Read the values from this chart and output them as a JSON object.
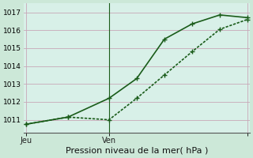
{
  "xlabel": "Pression niveau de la mer( hPa )",
  "bg_color": "#cce8d8",
  "plot_bg_color": "#d8f0e8",
  "grid_color": "#c8a8b8",
  "line_color": "#1a5c1a",
  "ylim": [
    1010.3,
    1017.5
  ],
  "yticks": [
    1011,
    1012,
    1013,
    1014,
    1015,
    1016,
    1017
  ],
  "vline_x": 0.375,
  "line1_x": [
    0.0,
    0.19,
    0.375,
    0.5,
    0.625,
    0.75,
    0.875,
    1.0
  ],
  "line1_y": [
    1010.75,
    1011.15,
    1012.2,
    1013.3,
    1015.5,
    1016.35,
    1016.85,
    1016.7
  ],
  "line2_x": [
    0.0,
    0.19,
    0.375,
    0.5,
    0.625,
    0.75,
    0.875,
    1.0
  ],
  "line2_y": [
    1010.75,
    1011.15,
    1011.0,
    1012.2,
    1013.5,
    1014.8,
    1016.05,
    1016.6
  ],
  "xtick_positions": [
    0.0,
    0.375,
    1.0
  ],
  "xtick_labels": [
    "Jeu",
    "Ven",
    ""
  ],
  "xlabel_fontsize": 8,
  "ytick_fontsize": 6.5,
  "xtick_fontsize": 7,
  "linewidth": 1.2,
  "markersize": 3
}
